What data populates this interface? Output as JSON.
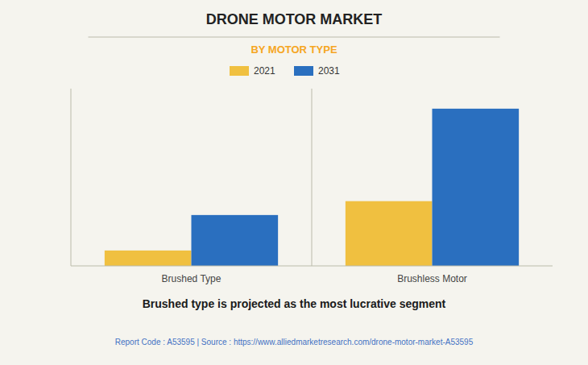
{
  "chart_data": {
    "type": "bar",
    "title": "DRONE MOTOR MARKET",
    "subtitle": "BY MOTOR TYPE",
    "categories": [
      "Brushed Type",
      "Brushless Motor"
    ],
    "series": [
      {
        "name": "2021",
        "color": "#F0C040",
        "values": [
          1.0,
          4.2
        ]
      },
      {
        "name": "2031",
        "color": "#2A6FBF",
        "values": [
          3.3,
          10.2
        ]
      }
    ],
    "ylim": [
      0,
      11.5
    ],
    "yticks": [],
    "tick_labels": "x",
    "grid": false,
    "legend": "top",
    "annotations": [
      "Brushed type is projected as the most lucrative segment",
      "Report Code : A53595  |  Source : https://www.alliedmarketresearch.com/drone-motor-market-A53595"
    ]
  }
}
